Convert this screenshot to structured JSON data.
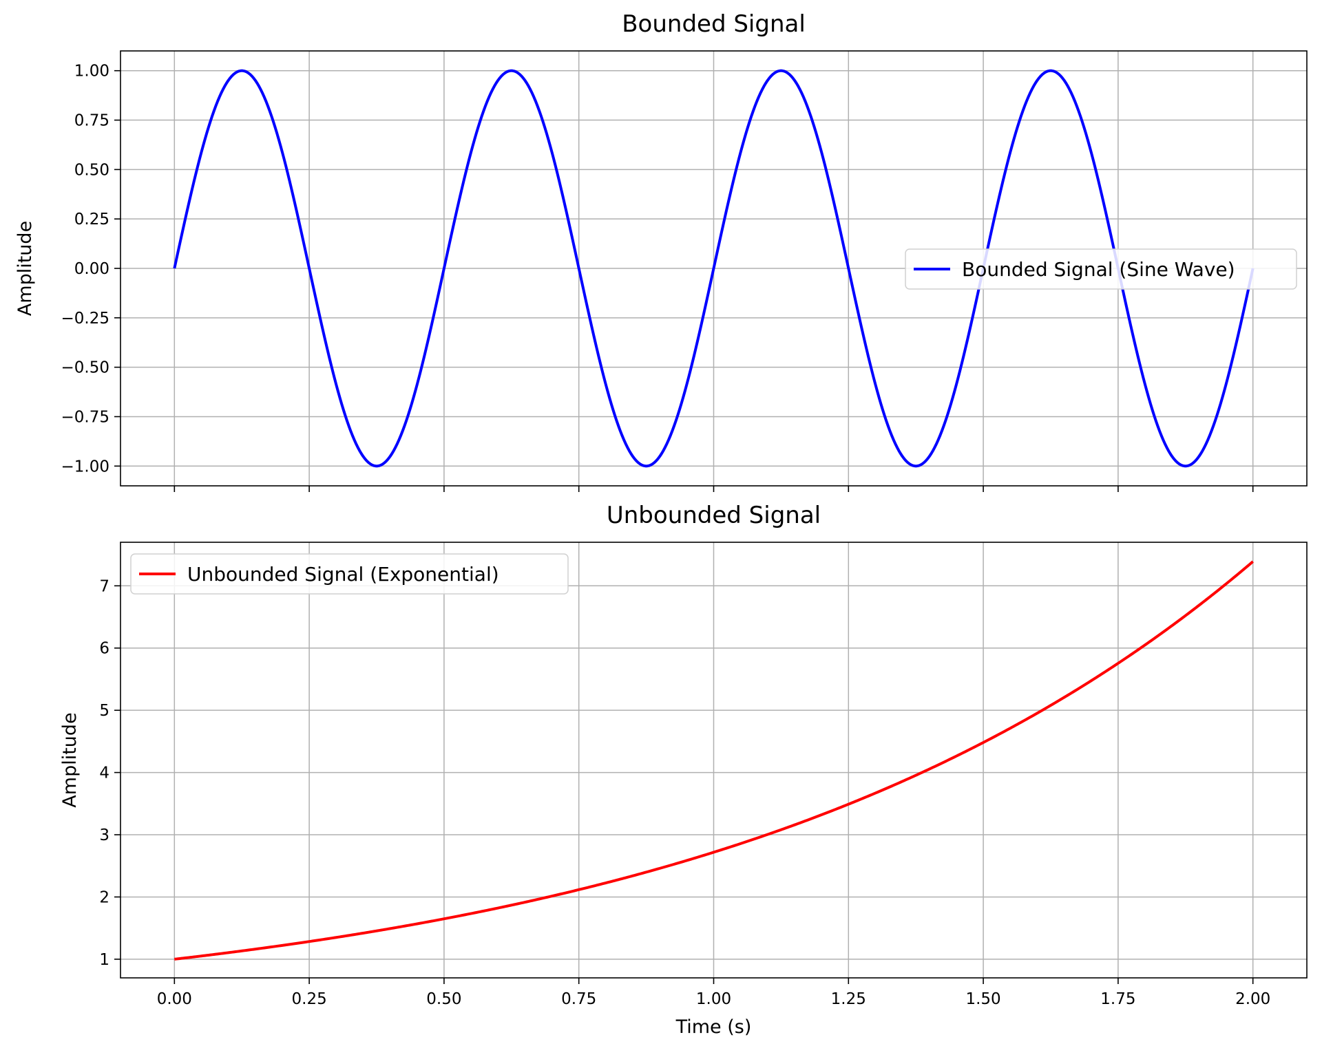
{
  "chart_data": [
    {
      "type": "line",
      "title": "Bounded Signal",
      "xlabel": "",
      "ylabel": "Amplitude",
      "xlim": [
        -0.1,
        2.1
      ],
      "ylim": [
        -1.1,
        1.1
      ],
      "x_ticks": [
        0.0,
        0.25,
        0.5,
        0.75,
        1.0,
        1.25,
        1.5,
        1.75,
        2.0
      ],
      "x_tick_labels_visible": false,
      "y_ticks": [
        -1.0,
        -0.75,
        -0.5,
        -0.25,
        0.0,
        0.25,
        0.5,
        0.75,
        1.0
      ],
      "y_tick_labels": [
        "−1.00",
        "−0.75",
        "−0.50",
        "−0.25",
        "0.00",
        "0.25",
        "0.50",
        "0.75",
        "1.00"
      ],
      "grid": true,
      "legend_position": "center-right",
      "series": [
        {
          "name": "Bounded Signal (Sine Wave)",
          "color": "#0000ff",
          "x": [
            0.0,
            0.125,
            0.25,
            0.375,
            0.5,
            0.625,
            0.75,
            0.875,
            1.0,
            1.125,
            1.25,
            1.375,
            1.5,
            1.625,
            1.75,
            1.875,
            2.0
          ],
          "y": [
            0.0,
            1.0,
            0.0,
            -1.0,
            0.0,
            1.0,
            0.0,
            -1.0,
            0.0,
            1.0,
            0.0,
            -1.0,
            0.0,
            1.0,
            0.0,
            -1.0,
            0.0
          ]
        }
      ]
    },
    {
      "type": "line",
      "title": "Unbounded Signal",
      "xlabel": "Time (s)",
      "ylabel": "Amplitude",
      "xlim": [
        -0.1,
        2.1
      ],
      "ylim": [
        0.7,
        7.7
      ],
      "x_ticks": [
        0.0,
        0.25,
        0.5,
        0.75,
        1.0,
        1.25,
        1.5,
        1.75,
        2.0
      ],
      "x_tick_labels": [
        "0.00",
        "0.25",
        "0.50",
        "0.75",
        "1.00",
        "1.25",
        "1.50",
        "1.75",
        "2.00"
      ],
      "y_ticks": [
        1,
        2,
        3,
        4,
        5,
        6,
        7
      ],
      "y_tick_labels": [
        "1",
        "2",
        "3",
        "4",
        "5",
        "6",
        "7"
      ],
      "grid": true,
      "legend_position": "top-left",
      "series": [
        {
          "name": "Unbounded Signal (Exponential)",
          "color": "#ff0000",
          "x": [
            0.0,
            0.25,
            0.5,
            0.75,
            1.0,
            1.25,
            1.5,
            1.75,
            2.0
          ],
          "y": [
            1.0,
            1.28,
            1.65,
            2.12,
            2.72,
            3.49,
            4.48,
            5.75,
            7.39
          ]
        }
      ]
    }
  ]
}
